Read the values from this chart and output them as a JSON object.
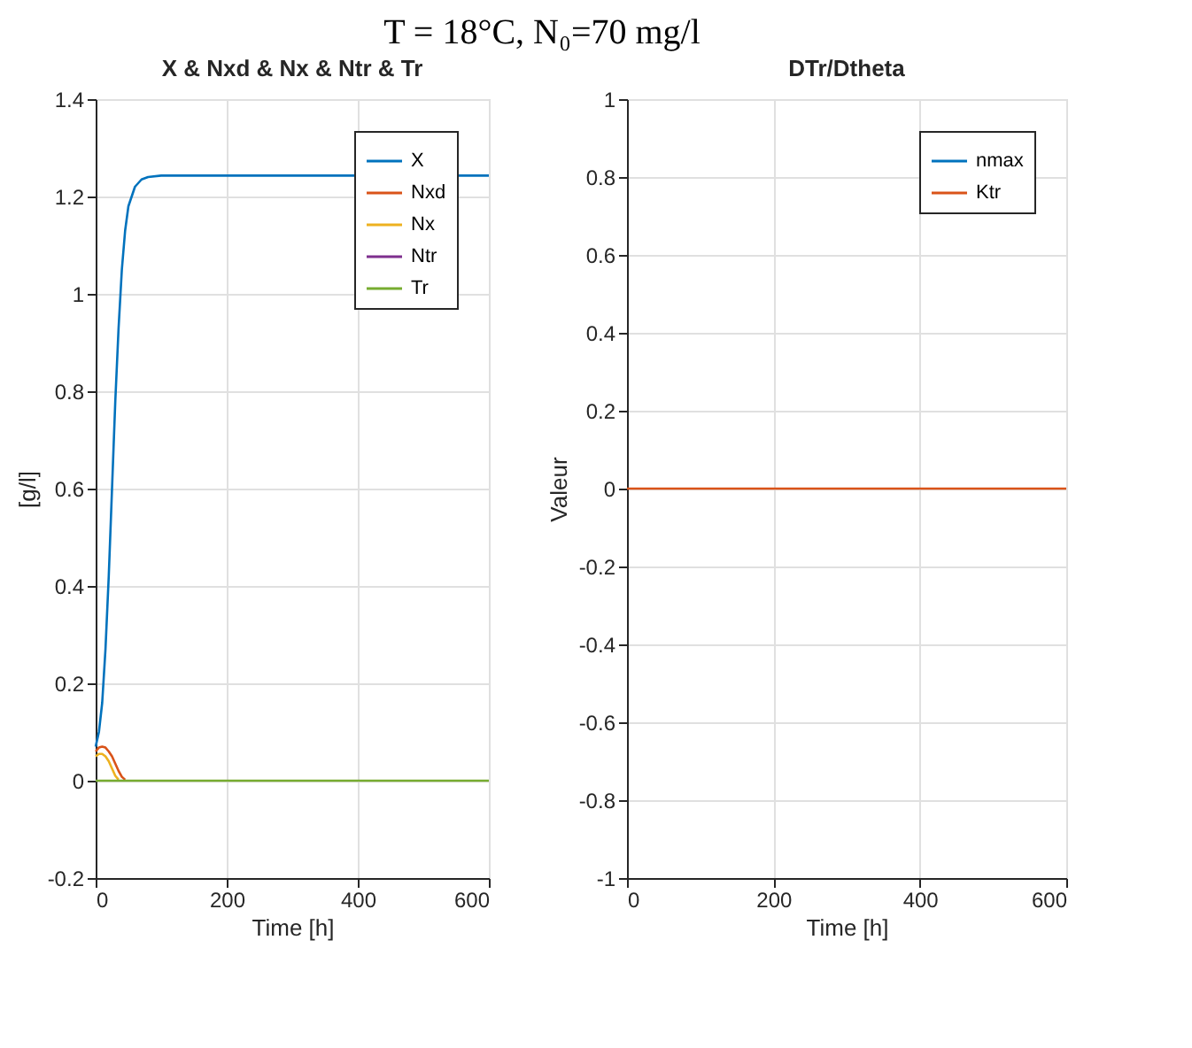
{
  "chart_data": [
    {
      "type": "line",
      "title": "X & Nxd & Nx & Ntr & Tr",
      "xlabel": "Time [h]",
      "ylabel": "[g/l]",
      "annotations": [
        "T = 18°C, N₀=70 mg/l"
      ],
      "xlim": [
        0,
        600
      ],
      "xticks": [
        0,
        200,
        400,
        600
      ],
      "ylim": [
        -0.2,
        1.4
      ],
      "yticks": [
        -0.2,
        0,
        0.2,
        0.4,
        0.6,
        0.8,
        1,
        1.2,
        1.4
      ],
      "grid": true,
      "legend": "top right",
      "line_style": "solid",
      "series": [
        {
          "name": "X",
          "color": "#0072bd",
          "x": [
            0,
            5,
            10,
            15,
            20,
            25,
            30,
            35,
            40,
            45,
            50,
            60,
            70,
            80,
            100,
            150,
            600
          ],
          "values": [
            0.07,
            0.1,
            0.16,
            0.27,
            0.42,
            0.6,
            0.78,
            0.93,
            1.05,
            1.13,
            1.18,
            1.22,
            1.235,
            1.24,
            1.243,
            1.243,
            1.243
          ]
        },
        {
          "name": "Nxd",
          "color": "#d95319",
          "x": [
            0,
            5,
            10,
            15,
            20,
            25,
            30,
            35,
            40,
            45
          ],
          "values": [
            0.06,
            0.068,
            0.07,
            0.068,
            0.06,
            0.05,
            0.035,
            0.02,
            0.008,
            0.002
          ]
        },
        {
          "name": "Nx",
          "color": "#edb120",
          "x": [
            0,
            5,
            10,
            15,
            20,
            25,
            30,
            35
          ],
          "values": [
            0.05,
            0.055,
            0.055,
            0.05,
            0.04,
            0.025,
            0.01,
            0.002
          ]
        },
        {
          "name": "Ntr",
          "color": "#7e2f8e"
        },
        {
          "name": "Tr",
          "color": "#77ac30",
          "x": [
            0,
            600
          ],
          "values": [
            0,
            0
          ]
        }
      ]
    },
    {
      "type": "line",
      "title": "DTr/Dtheta",
      "xlabel": "Time [h]",
      "ylabel": "Valeur",
      "xlim": [
        0,
        600
      ],
      "xticks": [
        0,
        200,
        400,
        600
      ],
      "ylim": [
        -1,
        1
      ],
      "yticks": [
        -1,
        -0.8,
        -0.6,
        -0.4,
        -0.2,
        0,
        0.2,
        0.4,
        0.6,
        0.8,
        1
      ],
      "grid": true,
      "legend": "top right",
      "line_style": "solid",
      "series": [
        {
          "name": "nmax",
          "color": "#0072bd"
        },
        {
          "name": "Ktr",
          "color": "#d95319",
          "x": [
            0,
            600
          ],
          "values": [
            0,
            0
          ]
        }
      ]
    }
  ]
}
